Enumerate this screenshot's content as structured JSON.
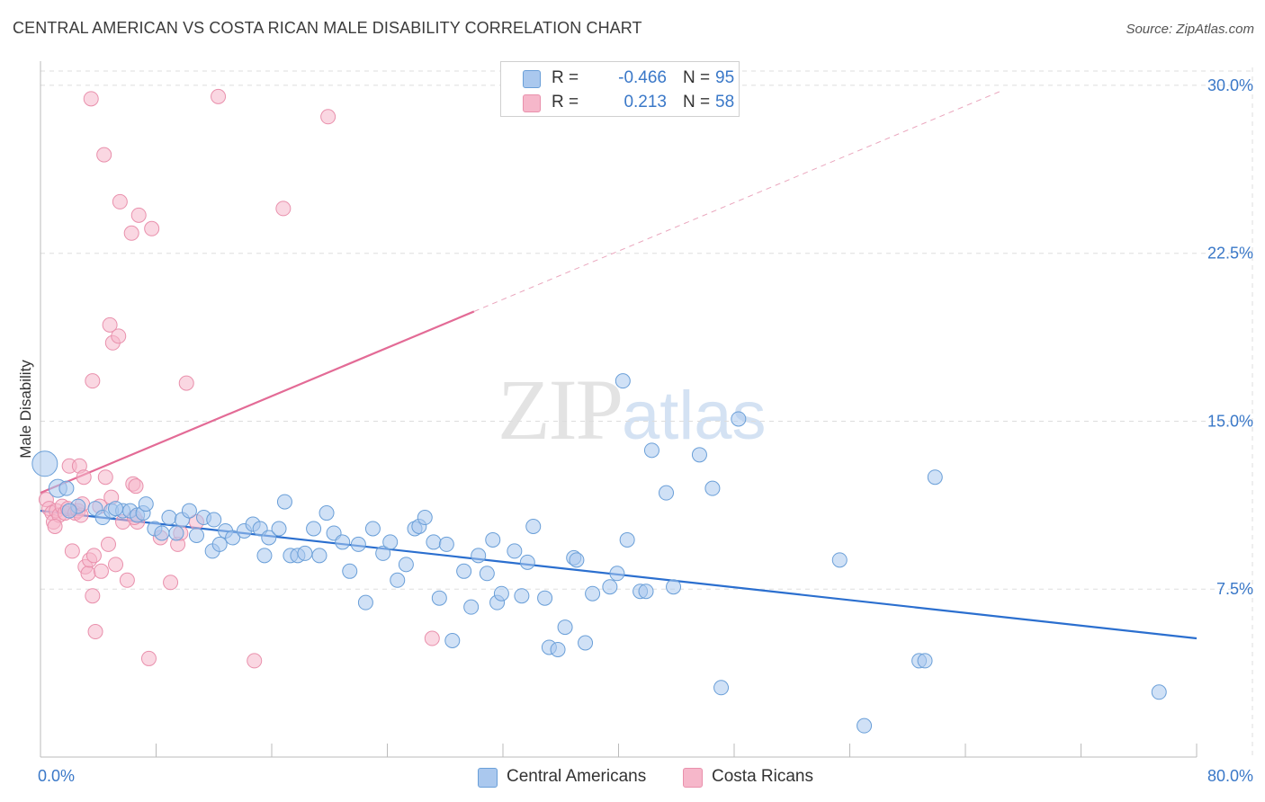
{
  "title": "CENTRAL AMERICAN VS COSTA RICAN MALE DISABILITY CORRELATION CHART",
  "source": "Source: ZipAtlas.com",
  "watermark": {
    "zip": "ZIP",
    "atlas": "atlas"
  },
  "legend_top": [
    {
      "r_label": "R =",
      "r_value": "-0.466",
      "n_label": "N =",
      "n_value": "95"
    },
    {
      "r_label": "R =",
      "r_value": "0.213",
      "n_label": "N =",
      "n_value": "58"
    }
  ],
  "legend_bottom": [
    "Central Americans",
    "Costa Ricans"
  ],
  "colors": {
    "blue_fill": "#aac8ee",
    "blue_stroke": "#6a9fd8",
    "blue_line": "#2b6fcf",
    "pink_fill": "#f6b7ca",
    "pink_stroke": "#e990ac",
    "pink_line": "#e36b96",
    "tick_label": "#3a78c8",
    "grid": "#dddddd"
  },
  "chart_data": {
    "type": "scatter",
    "xlabel": "",
    "ylabel": "Male Disability",
    "xlim": [
      0,
      80
    ],
    "ylim": [
      0,
      30.8
    ],
    "x_tick_labels": [
      {
        "value": 0,
        "label": "0.0%"
      },
      {
        "value": 80,
        "label": "80.0%"
      }
    ],
    "y_ticks": [
      {
        "value": 7.5,
        "label": "7.5%"
      },
      {
        "value": 15.0,
        "label": "15.0%"
      },
      {
        "value": 22.5,
        "label": "22.5%"
      },
      {
        "value": 30.0,
        "label": "30.0%"
      }
    ],
    "grid": true,
    "legend_position": "top-center",
    "series": [
      {
        "name": "Central Americans",
        "r": -0.466,
        "n": 95,
        "trend": {
          "x0": 0,
          "y0": 11.0,
          "x1": 80,
          "y1": 5.3
        },
        "points": [
          [
            0.3,
            13.1
          ],
          [
            1.2,
            12.0
          ],
          [
            1.8,
            12.0
          ],
          [
            2.6,
            11.2
          ],
          [
            3.8,
            11.1
          ],
          [
            4.3,
            10.7
          ],
          [
            4.9,
            11.0
          ],
          [
            5.7,
            11.0
          ],
          [
            6.2,
            11.0
          ],
          [
            6.7,
            10.8
          ],
          [
            7.1,
            10.9
          ],
          [
            7.3,
            11.3
          ],
          [
            7.9,
            10.2
          ],
          [
            8.4,
            10.0
          ],
          [
            8.9,
            10.7
          ],
          [
            9.4,
            10.0
          ],
          [
            9.8,
            10.6
          ],
          [
            10.3,
            11.0
          ],
          [
            10.8,
            9.9
          ],
          [
            11.3,
            10.7
          ],
          [
            11.9,
            9.2
          ],
          [
            12.4,
            9.5
          ],
          [
            12.8,
            10.1
          ],
          [
            13.3,
            9.8
          ],
          [
            14.1,
            10.1
          ],
          [
            14.7,
            10.4
          ],
          [
            15.2,
            10.2
          ],
          [
            15.5,
            9.0
          ],
          [
            15.8,
            9.8
          ],
          [
            16.5,
            10.2
          ],
          [
            16.9,
            11.4
          ],
          [
            17.3,
            9.0
          ],
          [
            17.8,
            9.0
          ],
          [
            18.3,
            9.1
          ],
          [
            18.9,
            10.2
          ],
          [
            19.3,
            9.0
          ],
          [
            19.8,
            10.9
          ],
          [
            20.3,
            10.0
          ],
          [
            20.9,
            9.6
          ],
          [
            21.4,
            8.3
          ],
          [
            22.0,
            9.5
          ],
          [
            22.5,
            6.9
          ],
          [
            23.0,
            10.2
          ],
          [
            23.7,
            9.1
          ],
          [
            24.2,
            9.6
          ],
          [
            24.7,
            7.9
          ],
          [
            25.3,
            8.6
          ],
          [
            25.9,
            10.2
          ],
          [
            26.2,
            10.3
          ],
          [
            26.6,
            10.7
          ],
          [
            27.2,
            9.6
          ],
          [
            27.6,
            7.1
          ],
          [
            28.1,
            9.5
          ],
          [
            28.5,
            5.2
          ],
          [
            29.3,
            8.3
          ],
          [
            29.8,
            6.7
          ],
          [
            30.3,
            9.0
          ],
          [
            30.9,
            8.2
          ],
          [
            31.3,
            9.7
          ],
          [
            31.6,
            6.9
          ],
          [
            31.9,
            7.3
          ],
          [
            32.8,
            9.2
          ],
          [
            33.3,
            7.2
          ],
          [
            33.7,
            8.7
          ],
          [
            34.1,
            10.3
          ],
          [
            34.9,
            7.1
          ],
          [
            35.2,
            4.9
          ],
          [
            35.8,
            4.8
          ],
          [
            36.3,
            5.8
          ],
          [
            36.9,
            8.9
          ],
          [
            37.1,
            8.8
          ],
          [
            37.7,
            5.1
          ],
          [
            38.2,
            7.3
          ],
          [
            39.4,
            7.6
          ],
          [
            39.9,
            8.2
          ],
          [
            40.3,
            16.8
          ],
          [
            40.6,
            9.7
          ],
          [
            41.5,
            7.4
          ],
          [
            41.9,
            7.4
          ],
          [
            42.3,
            13.7
          ],
          [
            43.3,
            11.8
          ],
          [
            43.8,
            7.6
          ],
          [
            45.6,
            13.5
          ],
          [
            46.5,
            12.0
          ],
          [
            47.1,
            3.1
          ],
          [
            48.3,
            15.1
          ],
          [
            55.3,
            8.8
          ],
          [
            57.0,
            1.4
          ],
          [
            60.8,
            4.3
          ],
          [
            61.2,
            4.3
          ],
          [
            61.9,
            12.5
          ],
          [
            77.4,
            2.9
          ],
          [
            2.0,
            11.0
          ],
          [
            5.2,
            11.1
          ],
          [
            12.0,
            10.6
          ]
        ]
      },
      {
        "name": "Costa Ricans",
        "r": 0.213,
        "n": 58,
        "trend": {
          "x0": 0,
          "y0": 11.8,
          "x1": 30,
          "y1": 19.9,
          "extend_to_x": 66.5
        },
        "points": [
          [
            0.4,
            11.5
          ],
          [
            0.6,
            11.1
          ],
          [
            0.8,
            10.9
          ],
          [
            0.9,
            10.5
          ],
          [
            1.1,
            11.0
          ],
          [
            1.3,
            10.8
          ],
          [
            1.5,
            11.2
          ],
          [
            1.7,
            10.9
          ],
          [
            1.9,
            11.1
          ],
          [
            2.0,
            13.0
          ],
          [
            2.2,
            9.2
          ],
          [
            2.4,
            10.9
          ],
          [
            2.6,
            11.0
          ],
          [
            2.7,
            13.0
          ],
          [
            2.8,
            10.8
          ],
          [
            3.0,
            12.5
          ],
          [
            3.1,
            8.5
          ],
          [
            3.3,
            8.2
          ],
          [
            3.4,
            8.8
          ],
          [
            3.6,
            7.2
          ],
          [
            3.7,
            9.0
          ],
          [
            3.8,
            5.6
          ],
          [
            3.5,
            29.4
          ],
          [
            3.6,
            16.8
          ],
          [
            4.1,
            11.2
          ],
          [
            4.2,
            8.3
          ],
          [
            4.5,
            12.5
          ],
          [
            4.4,
            26.9
          ],
          [
            4.7,
            9.5
          ],
          [
            4.8,
            19.3
          ],
          [
            4.9,
            11.6
          ],
          [
            5.0,
            18.5
          ],
          [
            5.2,
            8.6
          ],
          [
            5.4,
            18.8
          ],
          [
            5.5,
            24.8
          ],
          [
            5.7,
            10.5
          ],
          [
            6.0,
            7.9
          ],
          [
            6.3,
            23.4
          ],
          [
            6.4,
            12.2
          ],
          [
            6.6,
            12.1
          ],
          [
            6.7,
            10.5
          ],
          [
            6.8,
            24.2
          ],
          [
            7.7,
            23.6
          ],
          [
            7.5,
            4.4
          ],
          [
            8.3,
            9.8
          ],
          [
            9.0,
            7.8
          ],
          [
            9.5,
            9.5
          ],
          [
            10.1,
            16.7
          ],
          [
            10.8,
            10.5
          ],
          [
            12.3,
            29.5
          ],
          [
            14.8,
            4.3
          ],
          [
            16.8,
            24.5
          ],
          [
            19.9,
            28.6
          ],
          [
            27.1,
            5.3
          ],
          [
            1.0,
            10.3
          ],
          [
            2.9,
            11.3
          ],
          [
            6.5,
            10.7
          ],
          [
            9.7,
            10.0
          ]
        ]
      }
    ]
  }
}
